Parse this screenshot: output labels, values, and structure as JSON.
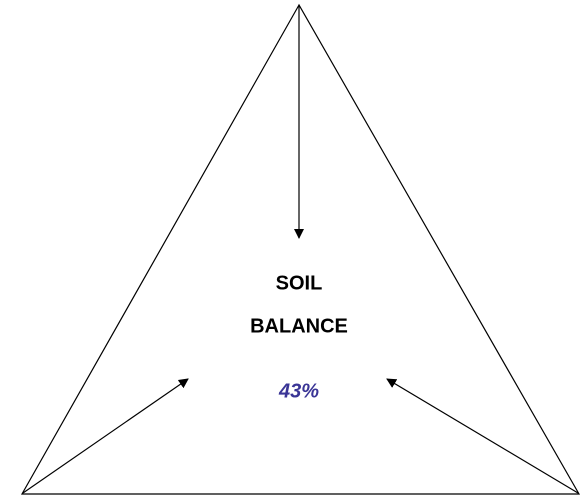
{
  "label": {
    "lines": [
      "SOIL",
      "BALANCE"
    ]
  },
  "percentage": "43%"
}
